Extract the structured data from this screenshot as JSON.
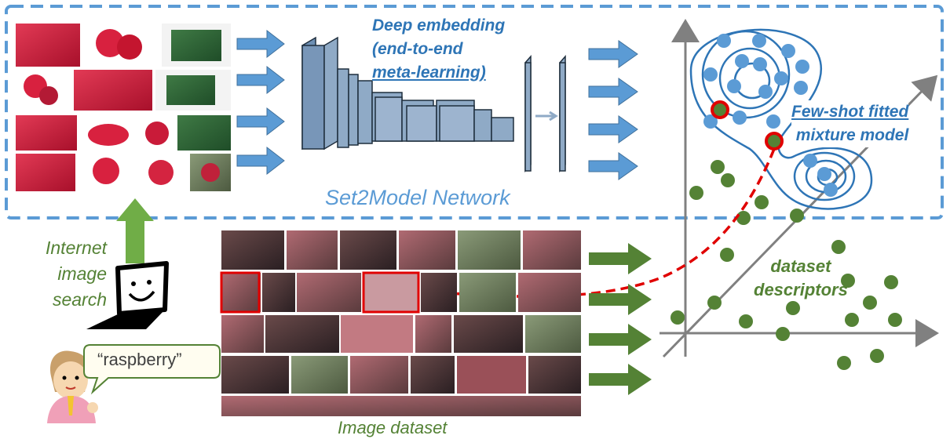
{
  "labels": {
    "deep_line1": "Deep embedding",
    "deep_line2": "(end-to-end",
    "deep_line3": "meta-learning)",
    "network": "Set2Model Network",
    "fewshot_line1": "Few-shot fitted",
    "fewshot_line2": "mixture model",
    "descriptors_line1": "dataset",
    "descriptors_line2": "descriptors",
    "search_line1": "Internet",
    "search_line2": "image",
    "search_line3": "search",
    "query": "“raspberry”",
    "image_dataset": "Image dataset"
  },
  "colors": {
    "blue": "#2e75b6",
    "arrow_blue": "#5b9bd5",
    "green": "#548235",
    "red": "#e00000",
    "cnn": "#8faac6"
  },
  "icons": [
    "laptop-icon",
    "user-avatar-icon"
  ]
}
